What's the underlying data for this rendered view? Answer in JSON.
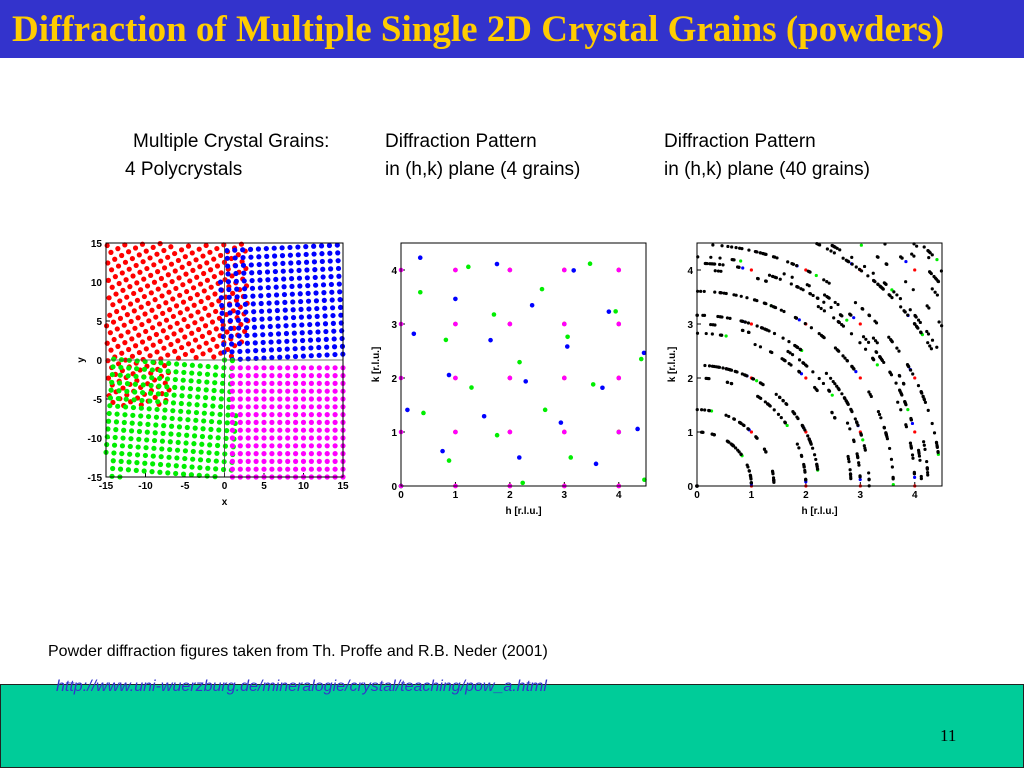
{
  "slide": {
    "title": "Diffraction of Multiple Single 2D Crystal Grains (powders)",
    "captions": [
      {
        "line1": "Multiple Crystal Grains:",
        "line2": "4 Polycrystals"
      },
      {
        "line1": "Diffraction Pattern",
        "line2": "in (h,k) plane (4 grains)"
      },
      {
        "line1": "Diffraction Pattern",
        "line2": "in (h,k) plane (40 grains)"
      }
    ],
    "credit": "Powder diffraction figures taken from Th. Proffe and R.B. Neder (2001)",
    "url": "http://www.uni-wuerzburg.de/mineralogie/crystal/teaching/pow_a.html",
    "page_number": "11"
  },
  "plots": {
    "real_space": {
      "xlabel": "x",
      "ylabel": "y",
      "xticks": [
        "-15",
        "-10",
        "-5",
        "0",
        "5",
        "10",
        "15"
      ],
      "yticks": [
        "15",
        "10",
        "5",
        "0",
        "-5",
        "-10",
        "-15"
      ],
      "grain_colors": [
        "#ff0000",
        "#0000ff",
        "#00ee00",
        "#ff00ff"
      ]
    },
    "pattern_4": {
      "xlabel": "h [r.l.u.]",
      "ylabel": "k [r.l.u.]",
      "xticks": [
        "0",
        "1",
        "2",
        "3",
        "4"
      ],
      "yticks": [
        "0",
        "1",
        "2",
        "3",
        "4"
      ]
    },
    "pattern_40": {
      "xlabel": "h [r.l.u.]",
      "ylabel": "k [r.l.u.]",
      "xticks": [
        "0",
        "1",
        "2",
        "3",
        "4"
      ],
      "yticks": [
        "0",
        "1",
        "2",
        "3",
        "4"
      ]
    }
  }
}
